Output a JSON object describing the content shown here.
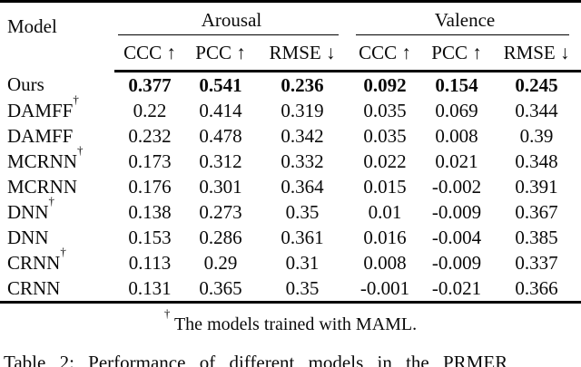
{
  "table": {
    "model_column_header": "Model",
    "dagger_symbol": "†",
    "groups": [
      {
        "label": "Arousal",
        "metrics": [
          "CCC ↑",
          "PCC ↑",
          "RMSE ↓"
        ]
      },
      {
        "label": "Valence",
        "metrics": [
          "CCC ↑",
          "PCC ↑",
          "RMSE ↓"
        ]
      }
    ],
    "rows": [
      {
        "model": "Ours",
        "dagger": false,
        "bold": true,
        "values": [
          "0.377",
          "0.541",
          "0.236",
          "0.092",
          "0.154",
          "0.245"
        ]
      },
      {
        "model": "DAMFF",
        "dagger": true,
        "bold": false,
        "values": [
          "0.22",
          "0.414",
          "0.319",
          "0.035",
          "0.069",
          "0.344"
        ]
      },
      {
        "model": "DAMFF",
        "dagger": false,
        "bold": false,
        "values": [
          "0.232",
          "0.478",
          "0.342",
          "0.035",
          "0.008",
          "0.39"
        ]
      },
      {
        "model": "MCRNN",
        "dagger": true,
        "bold": false,
        "values": [
          "0.173",
          "0.312",
          "0.332",
          "0.022",
          "0.021",
          "0.348"
        ]
      },
      {
        "model": "MCRNN",
        "dagger": false,
        "bold": false,
        "values": [
          "0.176",
          "0.301",
          "0.364",
          "0.015",
          "-0.002",
          "0.391"
        ]
      },
      {
        "model": "DNN",
        "dagger": true,
        "bold": false,
        "values": [
          "0.138",
          "0.273",
          "0.35",
          "0.01",
          "-0.009",
          "0.367"
        ]
      },
      {
        "model": "DNN",
        "dagger": false,
        "bold": false,
        "values": [
          "0.153",
          "0.286",
          "0.361",
          "0.016",
          "-0.004",
          "0.385"
        ]
      },
      {
        "model": "CRNN",
        "dagger": true,
        "bold": false,
        "values": [
          "0.113",
          "0.29",
          "0.31",
          "0.008",
          "-0.009",
          "0.337"
        ]
      },
      {
        "model": "CRNN",
        "dagger": false,
        "bold": false,
        "values": [
          "0.131",
          "0.365",
          "0.35",
          "-0.001",
          "-0.021",
          "0.366"
        ]
      }
    ],
    "footnote": {
      "symbol": "†",
      "text": "The models trained with MAML."
    },
    "caption": "Table 2: Performance of different models in the PRMER"
  }
}
